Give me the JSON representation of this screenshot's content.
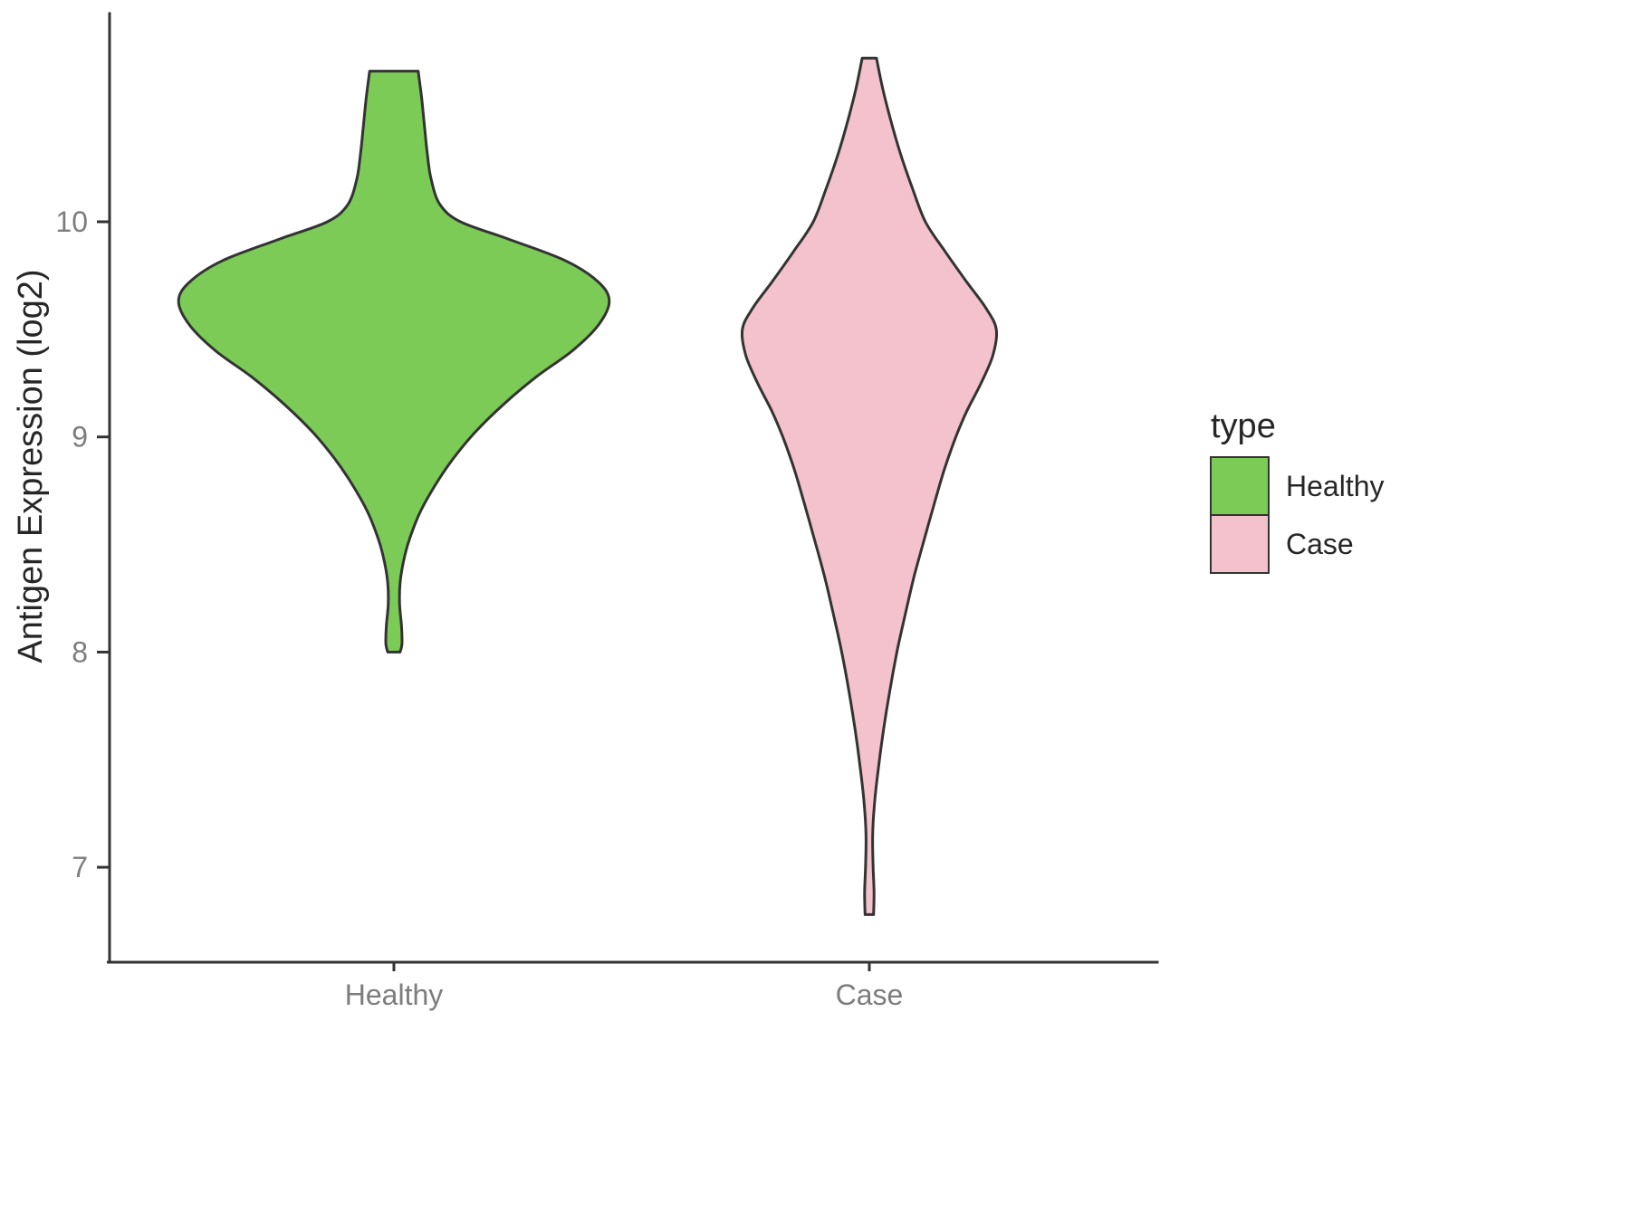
{
  "chart_data": {
    "type": "violin",
    "title": "",
    "xlabel": "",
    "ylabel": "Antigen Expression (log2)",
    "ylim": [
      6.6,
      10.95
    ],
    "yticks": [
      10,
      9,
      8,
      7
    ],
    "categories": [
      "Healthy",
      "Case"
    ],
    "grid": "off",
    "outline_color": "#333333",
    "legend": {
      "title": "type",
      "position": "right",
      "entries": [
        {
          "label": "Healthy",
          "color": "#7CCB57"
        },
        {
          "label": "Case",
          "color": "#F4C2CC"
        }
      ]
    },
    "series": [
      {
        "name": "Healthy",
        "color": "#7CCB57",
        "center": 1,
        "y_min": 8.0,
        "y_max": 10.7,
        "peak_density_at": 9.63,
        "profile": [
          [
            10.7,
            0.051
          ],
          [
            10.58,
            0.058
          ],
          [
            10.45,
            0.064
          ],
          [
            10.32,
            0.07
          ],
          [
            10.2,
            0.078
          ],
          [
            10.08,
            0.097
          ],
          [
            10.0,
            0.14
          ],
          [
            9.92,
            0.24
          ],
          [
            9.82,
            0.36
          ],
          [
            9.72,
            0.43
          ],
          [
            9.63,
            0.453
          ],
          [
            9.52,
            0.43
          ],
          [
            9.4,
            0.375
          ],
          [
            9.28,
            0.3
          ],
          [
            9.15,
            0.23
          ],
          [
            9.02,
            0.17
          ],
          [
            8.9,
            0.125
          ],
          [
            8.78,
            0.088
          ],
          [
            8.65,
            0.055
          ],
          [
            8.52,
            0.032
          ],
          [
            8.42,
            0.02
          ],
          [
            8.32,
            0.013
          ],
          [
            8.22,
            0.012
          ],
          [
            8.12,
            0.016
          ],
          [
            8.04,
            0.017
          ],
          [
            8.0,
            0.013
          ]
        ]
      },
      {
        "name": "Case",
        "color": "#F4C2CC",
        "center": 2,
        "y_min": 6.78,
        "y_max": 10.76,
        "peak_density_at": 9.5,
        "profile": [
          [
            10.76,
            0.015
          ],
          [
            10.62,
            0.028
          ],
          [
            10.48,
            0.044
          ],
          [
            10.32,
            0.065
          ],
          [
            10.16,
            0.09
          ],
          [
            10.0,
            0.118
          ],
          [
            9.86,
            0.16
          ],
          [
            9.72,
            0.205
          ],
          [
            9.6,
            0.245
          ],
          [
            9.5,
            0.267
          ],
          [
            9.38,
            0.26
          ],
          [
            9.25,
            0.235
          ],
          [
            9.12,
            0.205
          ],
          [
            9.0,
            0.182
          ],
          [
            8.85,
            0.158
          ],
          [
            8.7,
            0.138
          ],
          [
            8.52,
            0.115
          ],
          [
            8.35,
            0.094
          ],
          [
            8.18,
            0.076
          ],
          [
            8.0,
            0.058
          ],
          [
            7.82,
            0.043
          ],
          [
            7.64,
            0.03
          ],
          [
            7.46,
            0.019
          ],
          [
            7.3,
            0.011
          ],
          [
            7.15,
            0.007
          ],
          [
            7.0,
            0.008
          ],
          [
            6.88,
            0.01
          ],
          [
            6.78,
            0.009
          ]
        ]
      }
    ]
  }
}
